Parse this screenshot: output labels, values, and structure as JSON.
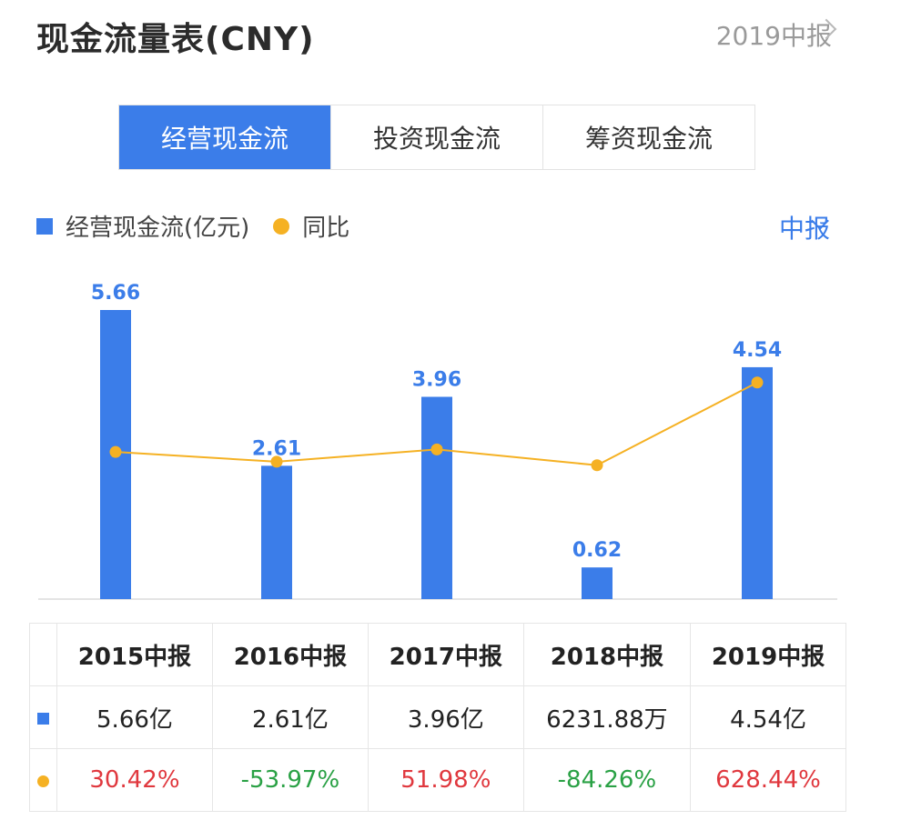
{
  "header": {
    "title": "现金流量表(CNY)",
    "period_link": "2019中报"
  },
  "tabs": [
    {
      "label": "经营现金流",
      "active": true
    },
    {
      "label": "投资现金流",
      "active": false
    },
    {
      "label": "筹资现金流",
      "active": false
    }
  ],
  "legend": {
    "bar_label": "经营现金流(亿元)",
    "line_label": "同比"
  },
  "period_select": {
    "label": "中报"
  },
  "colors": {
    "bar": "#3b7de9",
    "line": "#f5b123",
    "positive": "#e0383e",
    "negative": "#2aa145"
  },
  "chart_data": {
    "type": "bar",
    "categories": [
      "2015中报",
      "2016中报",
      "2017中报",
      "2018中报",
      "2019中报"
    ],
    "series": [
      {
        "name": "经营现金流(亿元)",
        "type": "bar",
        "values": [
          5.66,
          2.61,
          3.96,
          0.62,
          4.54
        ],
        "labels": [
          "5.66",
          "2.61",
          "3.96",
          "0.62",
          "4.54"
        ]
      },
      {
        "name": "同比",
        "type": "line",
        "values": [
          30.42,
          -53.97,
          51.98,
          -84.26,
          628.44
        ]
      }
    ]
  },
  "table": {
    "headers": [
      "2015中报",
      "2016中报",
      "2017中报",
      "2018中报",
      "2019中报"
    ],
    "values": [
      "5.66亿",
      "2.61亿",
      "3.96亿",
      "6231.88万",
      "4.54亿"
    ],
    "yoy": [
      "30.42%",
      "-53.97%",
      "51.98%",
      "-84.26%",
      "628.44%"
    ]
  }
}
